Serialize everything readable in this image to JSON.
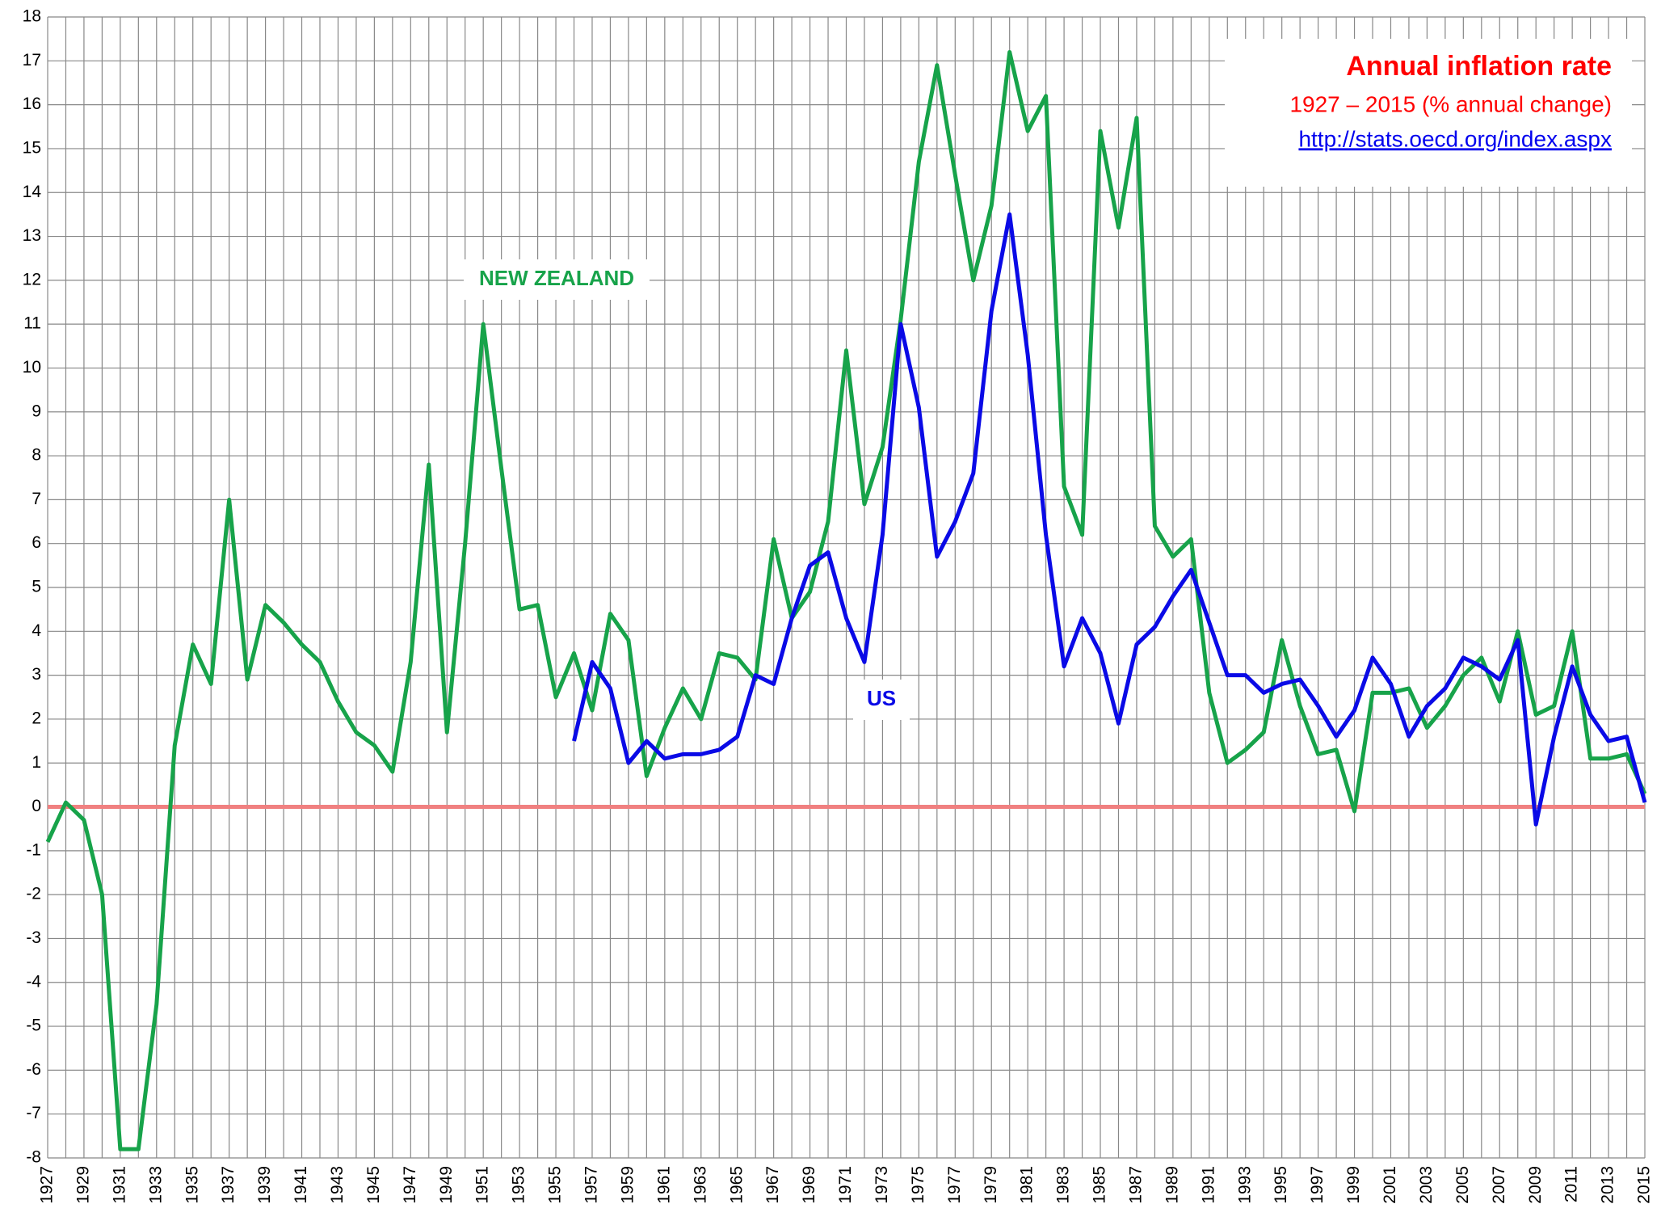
{
  "chart_data": {
    "type": "line",
    "title": "Annual inflation rate",
    "subtitle": "1927 – 2015 (% annual change)",
    "source": "http://stats.oecd.org/index.aspx",
    "annotations": [
      "NEW ZEALAND",
      "US"
    ],
    "categories": [
      "1927",
      null,
      "1929",
      null,
      "1931",
      null,
      "1933",
      null,
      "1935",
      null,
      "1937",
      null,
      "1939",
      null,
      "1941",
      null,
      "1943",
      null,
      "1945",
      null,
      "1947",
      null,
      "1949",
      null,
      "1951",
      null,
      "1953",
      null,
      "1955",
      null,
      "1957",
      null,
      "1959",
      null,
      "1961",
      null,
      "1963",
      null,
      "1965",
      null,
      "1967",
      null,
      "1969",
      null,
      "1971",
      null,
      "1973",
      null,
      "1975",
      null,
      "1977",
      null,
      "1979",
      null,
      "1981",
      null,
      "1983",
      null,
      "1985",
      null,
      "1987",
      null,
      "1989",
      null,
      "1991",
      null,
      "1993",
      null,
      "1995",
      null,
      "1997",
      null,
      "1999",
      null,
      "2001",
      null,
      "2003",
      null,
      "2005",
      null,
      "2007",
      null,
      "2009",
      null,
      "2011",
      null,
      "2013",
      null,
      "2015"
    ],
    "series": [
      {
        "name": "NEW ZEALAND",
        "color": "#17a34a",
        "values": [
          -0.8,
          0.1,
          -0.3,
          -2.0,
          -7.8,
          -7.8,
          -4.5,
          1.4,
          3.7,
          2.8,
          7.0,
          2.9,
          4.6,
          4.2,
          3.7,
          3.3,
          2.4,
          1.7,
          1.4,
          0.8,
          3.3,
          7.8,
          1.7,
          6.0,
          11.0,
          7.7,
          4.5,
          4.6,
          2.5,
          3.5,
          2.2,
          4.4,
          3.8,
          0.7,
          1.8,
          2.7,
          2.0,
          3.5,
          3.4,
          2.9,
          6.1,
          4.3,
          4.9,
          6.5,
          10.4,
          6.9,
          8.2,
          11.1,
          14.7,
          16.9,
          14.4,
          12.0,
          13.7,
          17.2,
          15.4,
          16.2,
          7.3,
          6.2,
          15.4,
          13.2,
          15.7,
          6.4,
          5.7,
          6.1,
          2.6,
          1.0,
          1.3,
          1.7,
          3.8,
          2.3,
          1.2,
          1.3,
          -0.1,
          2.6,
          2.6,
          2.7,
          1.8,
          2.3,
          3.0,
          3.4,
          2.4,
          4.0,
          2.1,
          2.3,
          4.0,
          1.1,
          1.1,
          1.2,
          0.3
        ]
      },
      {
        "name": "US",
        "color": "#0a0ae6",
        "values": [
          null,
          null,
          null,
          null,
          null,
          null,
          null,
          null,
          null,
          null,
          null,
          null,
          null,
          null,
          null,
          null,
          null,
          null,
          null,
          null,
          null,
          null,
          null,
          null,
          null,
          null,
          null,
          null,
          null,
          1.5,
          3.3,
          2.7,
          1.0,
          1.5,
          1.1,
          1.2,
          1.2,
          1.3,
          1.6,
          3.0,
          2.8,
          4.3,
          5.5,
          5.8,
          4.3,
          3.3,
          6.2,
          11.0,
          9.1,
          5.7,
          6.5,
          7.6,
          11.3,
          13.5,
          10.3,
          6.2,
          3.2,
          4.3,
          3.5,
          1.9,
          3.7,
          4.1,
          4.8,
          5.4,
          4.2,
          3.0,
          3.0,
          2.6,
          2.8,
          2.9,
          2.3,
          1.6,
          2.2,
          3.4,
          2.8,
          1.6,
          2.3,
          2.7,
          3.4,
          3.2,
          2.9,
          3.8,
          -0.4,
          1.6,
          3.2,
          2.1,
          1.5,
          1.6,
          0.1
        ]
      }
    ],
    "ylim": [
      -8,
      18
    ],
    "yticks": [
      -8,
      -7,
      -6,
      -5,
      -4,
      -3,
      -2,
      -1,
      0,
      1,
      2,
      3,
      4,
      5,
      6,
      7,
      8,
      9,
      10,
      11,
      12,
      13,
      14,
      15,
      16,
      17,
      18
    ],
    "grid": true,
    "zero_line_color": "#f08080"
  }
}
